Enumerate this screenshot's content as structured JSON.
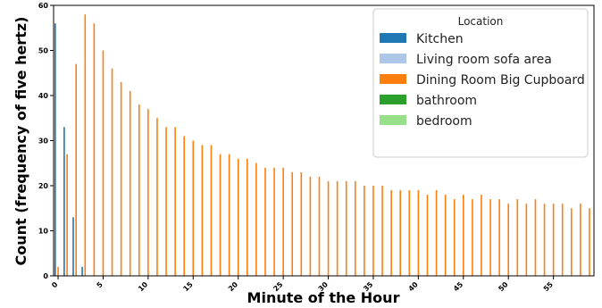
{
  "chart_data": {
    "type": "bar",
    "xlabel": "Minute of the Hour",
    "ylabel": "Count (frequency of five hertz)",
    "ylim": [
      0,
      60
    ],
    "yticks": [
      0,
      10,
      20,
      30,
      40,
      50,
      60
    ],
    "xticks": [
      0,
      5,
      10,
      15,
      20,
      25,
      30,
      35,
      40,
      45,
      50,
      55
    ],
    "grid": false,
    "legend": {
      "title": "Location",
      "placement": "top-right",
      "entries": [
        {
          "name": "Kitchen",
          "color": "#1f77b4"
        },
        {
          "name": "Living room sofa area",
          "color": "#aec7e8"
        },
        {
          "name": "Dining Room Big Cupboard",
          "color": "#ff7f0e"
        },
        {
          "name": "bathroom",
          "color": "#2ca02c"
        },
        {
          "name": "bedroom",
          "color": "#98df8a"
        }
      ]
    },
    "categories": [
      0,
      1,
      2,
      3,
      4,
      5,
      6,
      7,
      8,
      9,
      10,
      11,
      12,
      13,
      14,
      15,
      16,
      17,
      18,
      19,
      20,
      21,
      22,
      23,
      24,
      25,
      26,
      27,
      28,
      29,
      30,
      31,
      32,
      33,
      34,
      35,
      36,
      37,
      38,
      39,
      40,
      41,
      42,
      43,
      44,
      45,
      46,
      47,
      48,
      49,
      50,
      51,
      52,
      53,
      54,
      55,
      56,
      57,
      58,
      59
    ],
    "series": [
      {
        "name": "Kitchen",
        "color": "#1f77b4",
        "values": [
          56,
          33,
          13,
          2,
          0,
          0,
          0,
          0,
          0,
          0,
          0,
          0,
          0,
          0,
          0,
          0,
          0,
          0,
          0,
          0,
          0,
          0,
          0,
          0,
          0,
          0,
          0,
          0,
          0,
          0,
          0,
          0,
          0,
          0,
          0,
          0,
          0,
          0,
          0,
          0,
          0,
          0,
          0,
          0,
          0,
          0,
          0,
          0,
          0,
          0,
          0,
          0,
          0,
          0,
          0,
          0,
          0,
          0,
          0,
          0
        ]
      },
      {
        "name": "Living room sofa area",
        "color": "#aec7e8",
        "values": [
          0,
          0,
          0,
          0,
          0,
          0,
          0,
          0,
          0,
          0,
          0,
          0,
          0,
          0,
          0,
          0,
          0,
          0,
          0,
          0,
          0,
          0,
          0,
          0,
          0,
          0,
          0,
          0,
          0,
          0,
          0,
          0,
          0,
          0,
          0,
          0,
          0,
          0,
          0,
          0,
          0,
          0,
          0,
          0,
          0,
          0,
          0,
          0,
          0,
          0,
          0,
          0,
          0,
          0,
          0,
          0,
          0,
          0,
          0,
          0
        ]
      },
      {
        "name": "Dining Room Big Cupboard",
        "color": "#ff7f0e",
        "values": [
          2,
          27,
          47,
          58,
          56,
          50,
          46,
          43,
          41,
          38,
          37,
          35,
          33,
          33,
          31,
          30,
          29,
          29,
          27,
          27,
          26,
          26,
          25,
          24,
          24,
          24,
          23,
          23,
          22,
          22,
          21,
          21,
          21,
          21,
          20,
          20,
          20,
          19,
          19,
          19,
          19,
          18,
          19,
          18,
          17,
          18,
          17,
          18,
          17,
          17,
          16,
          17,
          16,
          17,
          16,
          16,
          16,
          15,
          16,
          15
        ]
      },
      {
        "name": "bathroom",
        "color": "#2ca02c",
        "values": [
          0,
          0,
          0,
          0,
          0,
          0,
          0,
          0,
          0,
          0,
          0,
          0,
          0,
          0,
          0,
          0,
          0,
          0,
          0,
          0,
          0,
          0,
          0,
          0,
          0,
          0,
          0,
          0,
          0,
          0,
          0,
          0,
          0,
          0,
          0,
          0,
          0,
          0,
          0,
          0,
          0,
          0,
          0,
          0,
          0,
          0,
          0,
          0,
          0,
          0,
          0,
          0,
          0,
          0,
          0,
          0,
          0,
          0,
          0,
          0
        ]
      },
      {
        "name": "bedroom",
        "color": "#98df8a",
        "values": [
          0,
          0,
          0,
          0,
          0,
          0,
          0,
          0,
          0,
          0,
          0,
          0,
          0,
          0,
          0,
          0,
          0,
          0,
          0,
          0,
          0,
          0,
          0,
          0,
          0,
          0,
          0,
          0,
          0,
          0,
          0,
          0,
          0,
          0,
          0,
          0,
          0,
          0,
          0,
          0,
          0,
          0,
          0,
          0,
          0,
          0,
          0,
          0,
          0,
          0,
          0,
          0,
          0,
          0,
          0,
          0,
          0,
          0,
          0,
          0
        ]
      }
    ]
  }
}
